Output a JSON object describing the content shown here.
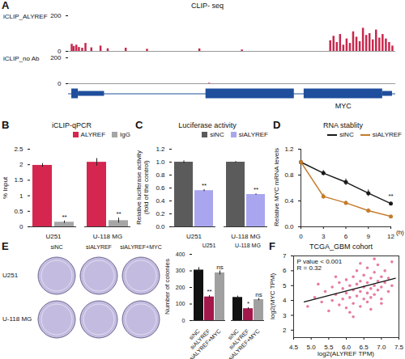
{
  "chart_data": [
    {
      "panel": "A",
      "type": "track",
      "title": "CLIP- seq",
      "xlim": [
        0,
        100
      ],
      "ylim": [
        0,
        200
      ],
      "yticks": [
        0,
        200
      ],
      "tick_labels": "y",
      "tracks": [
        {
          "name": "iCLIP_ALYREF",
          "color": "#c8284e",
          "x": [
            1,
            1.6,
            2.4,
            3.2,
            4.2,
            5.2,
            7,
            9.8,
            12,
            17.5,
            24,
            40,
            53,
            80,
            81,
            82,
            83,
            84,
            85,
            86,
            87,
            88,
            89,
            90,
            91,
            92,
            93,
            94,
            95,
            96,
            97,
            98,
            99
          ],
          "values": [
            40,
            28,
            35,
            22,
            18,
            45,
            20,
            30,
            15,
            18,
            12,
            14,
            8,
            60,
            85,
            50,
            95,
            35,
            70,
            45,
            110,
            80,
            55,
            130,
            90,
            100,
            65,
            120,
            75,
            95,
            70,
            50,
            30
          ]
        },
        {
          "name": "iCLIP_no Ab",
          "color": "#c8284e",
          "x": [
            43
          ],
          "values": [
            4
          ]
        }
      ],
      "gene": {
        "name": "MYC",
        "color": "#1f4e9c",
        "start": 0,
        "end": 100,
        "exons": [
          [
            1,
            3
          ],
          [
            42,
            69
          ],
          [
            72,
            96
          ]
        ],
        "utrs": [
          [
            3,
            11
          ],
          [
            96,
            99
          ]
        ]
      }
    },
    {
      "panel": "B",
      "type": "bar",
      "title": "iCLIP-qPCR",
      "categories": [
        "U251",
        "U-118 MG"
      ],
      "ylabel": "% Input",
      "ylim": [
        0,
        2.5
      ],
      "yticks": [
        0,
        0.5,
        1,
        1.5,
        2,
        2.5
      ],
      "legend": "top-right",
      "series": [
        {
          "name": "ALYREF",
          "color": "#d4264f",
          "values": [
            1.98,
            2.08
          ],
          "errors": [
            0.06,
            0.12
          ]
        },
        {
          "name": "IgG",
          "color": "#a6a6a6",
          "values": [
            0.15,
            0.2
          ],
          "errors": [
            0.04,
            0.08
          ],
          "annotations": [
            "**",
            "**"
          ]
        }
      ]
    },
    {
      "panel": "C",
      "type": "bar",
      "title": "Luciferase activity",
      "categories": [
        "U251",
        "U-118 MG"
      ],
      "ylabel": "Relative luciferase activity\n(fold of the control)",
      "ylim": [
        0,
        1.2
      ],
      "yticks": [
        {
          "value": 0,
          "label": "0.0"
        },
        0.2,
        0.4,
        0.6,
        0.8,
        {
          "value": 1,
          "label": "1.0"
        },
        1.2
      ],
      "legend": "top-right",
      "series": [
        {
          "name": "siNC",
          "color": "#5b5b5b",
          "values": [
            1.0,
            1.0
          ],
          "errors": [
            0.02,
            0.01
          ]
        },
        {
          "name": "siALYREF",
          "color": "#a9a6ef",
          "values": [
            0.56,
            0.5
          ],
          "errors": [
            0.015,
            0.01
          ],
          "annotations": [
            "**",
            "**"
          ]
        }
      ]
    },
    {
      "panel": "D",
      "type": "line",
      "title": "RNA stablity",
      "x": [
        0,
        3,
        6,
        9,
        12
      ],
      "xlabel": "(h)",
      "ylabel": "Relative MYC mRNA levels",
      "xlim": [
        0,
        12
      ],
      "xticks": [
        0,
        3,
        6,
        9,
        12
      ],
      "ylim": [
        0,
        1.2
      ],
      "yticks": [
        {
          "value": 0,
          "label": "0.0"
        },
        0.4,
        0.8,
        1.2
      ],
      "legend": "top-right",
      "marker": "circle",
      "series": [
        {
          "name": "siNC",
          "color": "#1a1a1a",
          "values": [
            1.0,
            0.83,
            0.69,
            0.52,
            0.36
          ],
          "errors": [
            0.02,
            0.04,
            0.05,
            0.05,
            0.04
          ],
          "annotations": [
            null,
            null,
            null,
            null,
            "**"
          ]
        },
        {
          "name": "siALYREF",
          "color": "#c57b2b",
          "values": [
            1.0,
            0.47,
            0.37,
            0.25,
            0.16
          ],
          "errors": [
            0.02,
            0.04,
            0.03,
            0.03,
            0.03
          ]
        }
      ]
    },
    {
      "panel": "E",
      "type": "image",
      "columns": [
        "siNC",
        "siALYREF",
        "siALYREF+MYC"
      ],
      "rows": [
        "U251",
        "U-118 MG"
      ],
      "color": "#c4bce0"
    },
    {
      "type": "bar",
      "categories": [
        "U251",
        "U-118 MG"
      ],
      "ylabel": "Number of colonies",
      "ylim": [
        0,
        400
      ],
      "yticks": [
        0,
        100,
        200,
        300,
        400
      ],
      "series": [
        {
          "name": "siNC",
          "color": "#111111",
          "values": [
            305,
            140
          ],
          "errors": [
            15,
            8
          ]
        },
        {
          "name": "siALYREF",
          "color": "#a3174b",
          "values": [
            143,
            72
          ],
          "errors": [
            8,
            6
          ],
          "annotations": [
            "**",
            "*"
          ]
        },
        {
          "name": "siALYREF+MYC",
          "color": "#a0a0a0",
          "values": [
            288,
            127
          ],
          "errors": [
            12,
            7
          ],
          "annotations": [
            "ns",
            "ns"
          ]
        }
      ]
    },
    {
      "panel": "F",
      "type": "scatter",
      "title": "TCGA_GBM cohort",
      "annotations": [
        "P value < 0.001",
        "R = 0.32"
      ],
      "xlabel": "log2(ALYREF TPM)",
      "ylabel": "log2(MYC TPM)",
      "xlim": [
        4.5,
        7.5
      ],
      "xticks": [
        4.5,
        {
          "value": 5,
          "label": "5.0"
        },
        5.5,
        {
          "value": 6,
          "label": "6.0"
        },
        6.5,
        {
          "value": 7,
          "label": "7.0"
        },
        7.5
      ],
      "ylim": [
        1.5,
        7
      ],
      "yticks": [
        2,
        3,
        4,
        5,
        6,
        7
      ],
      "color": "#e36f97",
      "x": [
        4.9,
        5.1,
        5.3,
        5.4,
        5.5,
        5.6,
        5.6,
        5.7,
        5.8,
        5.8,
        5.9,
        5.9,
        6.0,
        6.0,
        6.0,
        6.1,
        6.1,
        6.2,
        6.2,
        6.2,
        6.3,
        6.3,
        6.3,
        6.4,
        6.4,
        6.4,
        6.5,
        6.5,
        6.5,
        6.6,
        6.6,
        6.6,
        6.6,
        6.7,
        6.7,
        6.7,
        6.8,
        6.8,
        6.8,
        6.9,
        6.9,
        6.9,
        7.0,
        7.0,
        7.0,
        7.1,
        7.1,
        7.2,
        7.2,
        7.3,
        7.3,
        6.1,
        5.7,
        6.4,
        6.7,
        7.0,
        5.2,
        6.2,
        6.8
      ],
      "values": [
        3.6,
        4.2,
        3.9,
        4.6,
        3.3,
        4.0,
        4.9,
        4.4,
        3.7,
        5.2,
        4.1,
        4.8,
        3.5,
        4.5,
        5.4,
        4.2,
        5.0,
        3.8,
        4.7,
        5.6,
        4.3,
        5.1,
        6.0,
        3.6,
        4.6,
        5.3,
        4.1,
        4.9,
        5.7,
        3.9,
        4.5,
        5.2,
        6.2,
        4.8,
        5.5,
        4.2,
        5.0,
        5.9,
        4.4,
        4.7,
        5.3,
        6.4,
        4.9,
        5.6,
        4.1,
        5.2,
        6.0,
        4.6,
        5.5,
        5.0,
        6.6,
        3.2,
        5.6,
        6.5,
        3.4,
        3.8,
        5.1,
        2.9,
        6.8
      ],
      "fit": {
        "color": "#111111",
        "x": [
          4.8,
          7.4
        ],
        "values": [
          3.9,
          5.5
        ]
      }
    }
  ]
}
